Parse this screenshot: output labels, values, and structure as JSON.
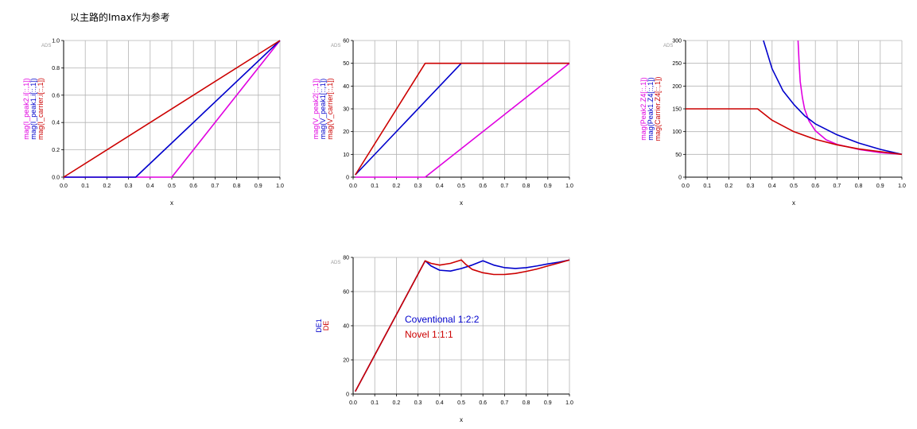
{
  "page": {
    "title": "以主路的Imax作为参考"
  },
  "colors": {
    "magenta": "#e000e0",
    "blue": "#0000cc",
    "red": "#cc0000",
    "grid": "#b4b4b4"
  },
  "chart_data": [
    {
      "type": "line",
      "watermark": "ADS",
      "xlabel": "x",
      "ylabel_lines": [
        {
          "text": "mag(I_peak2.i[::,1])",
          "color": "#e000e0"
        },
        {
          "text": "mag(I_peak1.i[::,1])",
          "color": "#0000cc"
        },
        {
          "text": "mag(I_carrier.i[::,1])",
          "color": "#cc0000"
        }
      ],
      "xlim": [
        0,
        1
      ],
      "ylim": [
        0,
        1
      ],
      "xticks": [
        "0.0",
        "0.1",
        "0.2",
        "0.3",
        "0.4",
        "0.5",
        "0.6",
        "0.7",
        "0.8",
        "0.9",
        "1.0"
      ],
      "yticks": [
        "0.0",
        "0.2",
        "0.4",
        "0.6",
        "0.8",
        "1.0"
      ],
      "series": [
        {
          "color": "#e000e0",
          "points": [
            [
              0,
              0
            ],
            [
              0.5,
              0
            ],
            [
              1,
              1
            ]
          ]
        },
        {
          "color": "#0000cc",
          "points": [
            [
              0,
              0
            ],
            [
              0.333,
              0
            ],
            [
              1,
              1
            ]
          ]
        },
        {
          "color": "#cc0000",
          "points": [
            [
              0,
              0
            ],
            [
              1,
              1
            ]
          ]
        }
      ]
    },
    {
      "type": "line",
      "watermark": "ADS",
      "xlabel": "x",
      "ylabel_lines": [
        {
          "text": "mag(V_peak2[::,1])",
          "color": "#e000e0"
        },
        {
          "text": "mag(V_peak1[::,1])",
          "color": "#0000cc"
        },
        {
          "text": "mag(V_carrier[::,1])",
          "color": "#cc0000"
        }
      ],
      "xlim": [
        0,
        1
      ],
      "ylim": [
        0,
        60
      ],
      "xticks": [
        "0.0",
        "0.1",
        "0.2",
        "0.3",
        "0.4",
        "0.5",
        "0.6",
        "0.7",
        "0.8",
        "0.9",
        "1.0"
      ],
      "yticks": [
        "0",
        "10",
        "20",
        "30",
        "40",
        "50",
        "60"
      ],
      "series": [
        {
          "color": "#e000e0",
          "points": [
            [
              0.01,
              0
            ],
            [
              0.333,
              0
            ],
            [
              1,
              50
            ]
          ]
        },
        {
          "color": "#0000cc",
          "points": [
            [
              0.01,
              1
            ],
            [
              0.5,
              50
            ],
            [
              1,
              50
            ]
          ]
        },
        {
          "color": "#cc0000",
          "points": [
            [
              0.01,
              1
            ],
            [
              0.333,
              50
            ],
            [
              1,
              50
            ]
          ]
        }
      ]
    },
    {
      "type": "line",
      "watermark": "ADS",
      "xlabel": "x",
      "ylabel_lines": [
        {
          "text": "mag(Peak2.Z4[::,1])",
          "color": "#e000e0"
        },
        {
          "text": "mag(Peak1.Z4[::,1])",
          "color": "#0000cc"
        },
        {
          "text": "mag(Carrier.Z4[::,1])",
          "color": "#cc0000"
        }
      ],
      "xlim": [
        0,
        1
      ],
      "ylim": [
        0,
        300
      ],
      "xticks": [
        "0.0",
        "0.1",
        "0.2",
        "0.3",
        "0.4",
        "0.5",
        "0.6",
        "0.7",
        "0.8",
        "0.9",
        "1.0"
      ],
      "yticks": [
        "0",
        "50",
        "100",
        "150",
        "200",
        "250",
        "300"
      ],
      "series": [
        {
          "color": "#e000e0",
          "points": [
            [
              0.52,
              300
            ],
            [
              0.525,
              250
            ],
            [
              0.53,
              210
            ],
            [
              0.54,
              175
            ],
            [
              0.55,
              150
            ],
            [
              0.57,
              124
            ],
            [
              0.6,
              102
            ],
            [
              0.65,
              82
            ],
            [
              0.7,
              72
            ],
            [
              0.8,
              61
            ],
            [
              0.9,
              54
            ],
            [
              1.0,
              50
            ]
          ]
        },
        {
          "color": "#0000cc",
          "points": [
            [
              0.36,
              300
            ],
            [
              0.4,
              238
            ],
            [
              0.45,
              190
            ],
            [
              0.5,
              160
            ],
            [
              0.55,
              135
            ],
            [
              0.6,
              117
            ],
            [
              0.7,
              93
            ],
            [
              0.8,
              75
            ],
            [
              0.9,
              61
            ],
            [
              1.0,
              50
            ]
          ]
        },
        {
          "color": "#cc0000",
          "points": [
            [
              0,
              150
            ],
            [
              0.333,
              150
            ],
            [
              0.4,
              125
            ],
            [
              0.5,
              100
            ],
            [
              0.6,
              83
            ],
            [
              0.7,
              71
            ],
            [
              0.8,
              62
            ],
            [
              0.9,
              56
            ],
            [
              1.0,
              50
            ]
          ]
        }
      ]
    },
    {
      "type": "line",
      "watermark": "ADS",
      "xlabel": "x",
      "ylabel_lines": [
        {
          "text": "DE1",
          "color": "#0000cc"
        },
        {
          "text": "DE",
          "color": "#cc0000"
        }
      ],
      "xlim": [
        0,
        1
      ],
      "ylim": [
        0,
        80
      ],
      "xticks": [
        "0.0",
        "0.1",
        "0.2",
        "0.3",
        "0.4",
        "0.5",
        "0.6",
        "0.7",
        "0.8",
        "0.9",
        "1.0"
      ],
      "yticks": [
        "0",
        "20",
        "40",
        "60",
        "80"
      ],
      "legend": [
        {
          "text": "Coventional 1:2:2",
          "color": "#0000cc"
        },
        {
          "text": "Novel 1:1:1",
          "color": "#cc0000"
        }
      ],
      "legend_placement": "center-left",
      "series": [
        {
          "name": "Coventional 1:2:2",
          "color": "#0000cc",
          "points": [
            [
              0.01,
              1.5
            ],
            [
              0.333,
              78
            ],
            [
              0.36,
              75
            ],
            [
              0.4,
              72.5
            ],
            [
              0.45,
              72
            ],
            [
              0.5,
              73.5
            ],
            [
              0.55,
              75.5
            ],
            [
              0.6,
              78
            ],
            [
              0.65,
              75.5
            ],
            [
              0.7,
              74
            ],
            [
              0.75,
              73.5
            ],
            [
              0.8,
              74
            ],
            [
              0.85,
              75
            ],
            [
              0.9,
              76.2
            ],
            [
              0.95,
              77.2
            ],
            [
              1.0,
              78.5
            ]
          ]
        },
        {
          "name": "Novel 1:1:1",
          "color": "#cc0000",
          "points": [
            [
              0.01,
              1.5
            ],
            [
              0.333,
              78
            ],
            [
              0.36,
              76.5
            ],
            [
              0.4,
              75.5
            ],
            [
              0.45,
              76.5
            ],
            [
              0.5,
              78.5
            ],
            [
              0.52,
              76
            ],
            [
              0.55,
              73
            ],
            [
              0.6,
              71
            ],
            [
              0.65,
              70
            ],
            [
              0.7,
              70
            ],
            [
              0.75,
              70.6
            ],
            [
              0.8,
              71.8
            ],
            [
              0.85,
              73.2
            ],
            [
              0.9,
              75
            ],
            [
              0.95,
              76.7
            ],
            [
              1.0,
              78.5
            ]
          ]
        }
      ]
    }
  ]
}
